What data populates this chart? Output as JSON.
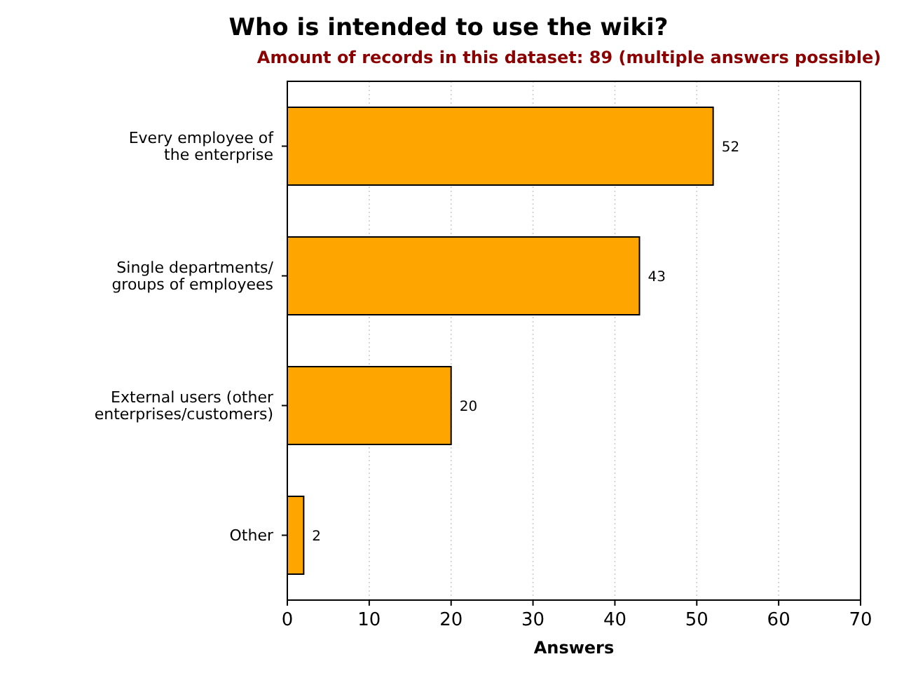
{
  "chart_data": {
    "type": "bar",
    "orientation": "horizontal",
    "title": "Who is intended to use the wiki?",
    "subtitle": "Amount of records in this dataset: 89 (multiple answers possible)",
    "xlabel": "Answers",
    "categories": [
      "Every employee of\nthe enterprise",
      "Single departments/\ngroups of employees",
      "External users (other\nenterprises/customers)",
      "Other"
    ],
    "values": [
      52,
      43,
      20,
      2
    ],
    "color": "#ffa500",
    "xlim": [
      0,
      70
    ],
    "xticks": [
      0,
      10,
      20,
      30,
      40,
      50,
      60,
      70
    ],
    "grid": "x",
    "data_labels": true
  }
}
